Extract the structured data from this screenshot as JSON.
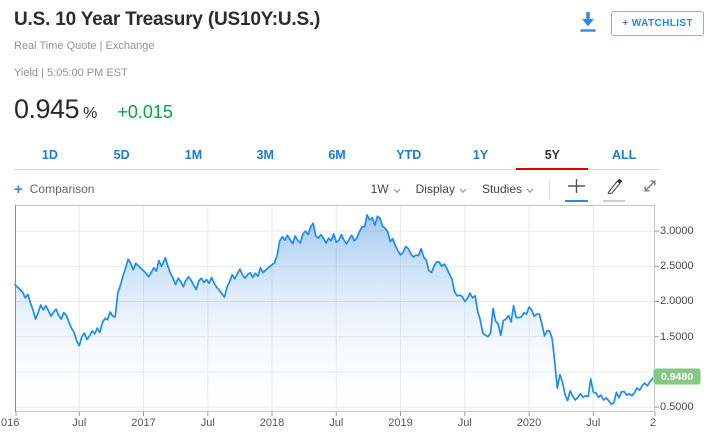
{
  "header": {
    "title": "U.S. 10 Year Treasury (US10Y:U.S.)",
    "subtitle": "Real Time Quote | Exchange",
    "quote_meta": "Yield | 5:05:00 PM EST",
    "price": "0.945",
    "price_unit": "%",
    "change": "+0.015",
    "change_color": "#0da04e",
    "watchlist_label": "+ WATCHLIST"
  },
  "icons": {
    "plus": "+",
    "download": "download-arrow-icon",
    "chevron": "chevron-down-icon",
    "crosshair": "crosshair-icon",
    "pencil": "pencil-icon",
    "expand": "expand-arrows-icon"
  },
  "tabs": {
    "items": [
      {
        "label": "1D",
        "active": false
      },
      {
        "label": "5D",
        "active": false
      },
      {
        "label": "1M",
        "active": false
      },
      {
        "label": "3M",
        "active": false
      },
      {
        "label": "6M",
        "active": false
      },
      {
        "label": "YTD",
        "active": false
      },
      {
        "label": "1Y",
        "active": false
      },
      {
        "label": "5Y",
        "active": true
      },
      {
        "label": "ALL",
        "active": false
      }
    ],
    "active_color": "#333333",
    "inactive_color": "#1b7cd4",
    "active_underline_color": "#e00000"
  },
  "toolbar": {
    "comparison_label": "Comparison",
    "interval": "1W",
    "display_label": "Display",
    "studies_label": "Studies"
  },
  "chart_data": {
    "type": "area",
    "series_name": "US10Y yield (%)",
    "x_domain": [
      2016.0,
      2020.98
    ],
    "y_domain": [
      0.43,
      3.37
    ],
    "y_gridlines": [
      3.0,
      2.5,
      2.0,
      1.5,
      1.0,
      0.5
    ],
    "y_labels": [
      {
        "v": 3.0,
        "label": "3.0000"
      },
      {
        "v": 2.5,
        "label": "2.5000"
      },
      {
        "v": 2.0,
        "label": "2.0000"
      },
      {
        "v": 1.5,
        "label": "1.5000"
      },
      {
        "v": 0.5,
        "label": "0.5000"
      }
    ],
    "x_ticks": [
      {
        "t": 2016.0,
        "label": "016"
      },
      {
        "t": 2016.5,
        "label": "Jul"
      },
      {
        "t": 2017.0,
        "label": "2017"
      },
      {
        "t": 2017.5,
        "label": "Jul"
      },
      {
        "t": 2018.0,
        "label": "2018"
      },
      {
        "t": 2018.5,
        "label": "Jul"
      },
      {
        "t": 2019.0,
        "label": "2019"
      },
      {
        "t": 2019.5,
        "label": "Jul"
      },
      {
        "t": 2020.0,
        "label": "2020"
      },
      {
        "t": 2020.5,
        "label": "Jul"
      },
      {
        "t": 2021.0,
        "label": "2"
      }
    ],
    "last_price_badge": {
      "label": "0.9480",
      "v": 0.948,
      "bg": "#85c785"
    },
    "line_color": "#1f8ceb",
    "fill_top": "rgba(84,156,226,0.55)",
    "fill_bottom": "rgba(255,255,255,0)",
    "grid_on": true,
    "legend": "none",
    "points": [
      [
        2016.0,
        2.24
      ],
      [
        2016.04,
        2.17
      ],
      [
        2016.06,
        2.13
      ],
      [
        2016.08,
        2.05
      ],
      [
        2016.1,
        2.1
      ],
      [
        2016.12,
        1.98
      ],
      [
        2016.14,
        1.88
      ],
      [
        2016.16,
        1.75
      ],
      [
        2016.18,
        1.84
      ],
      [
        2016.2,
        1.95
      ],
      [
        2016.22,
        1.88
      ],
      [
        2016.24,
        1.94
      ],
      [
        2016.26,
        1.87
      ],
      [
        2016.28,
        1.79
      ],
      [
        2016.3,
        1.85
      ],
      [
        2016.32,
        1.89
      ],
      [
        2016.34,
        1.8
      ],
      [
        2016.36,
        1.75
      ],
      [
        2016.38,
        1.84
      ],
      [
        2016.4,
        1.8
      ],
      [
        2016.42,
        1.7
      ],
      [
        2016.44,
        1.62
      ],
      [
        2016.46,
        1.56
      ],
      [
        2016.48,
        1.44
      ],
      [
        2016.5,
        1.37
      ],
      [
        2016.52,
        1.5
      ],
      [
        2016.54,
        1.55
      ],
      [
        2016.56,
        1.46
      ],
      [
        2016.58,
        1.51
      ],
      [
        2016.6,
        1.58
      ],
      [
        2016.62,
        1.54
      ],
      [
        2016.64,
        1.62
      ],
      [
        2016.66,
        1.56
      ],
      [
        2016.68,
        1.7
      ],
      [
        2016.7,
        1.76
      ],
      [
        2016.72,
        1.74
      ],
      [
        2016.74,
        1.85
      ],
      [
        2016.76,
        1.79
      ],
      [
        2016.78,
        1.78
      ],
      [
        2016.8,
        2.12
      ],
      [
        2016.82,
        2.23
      ],
      [
        2016.84,
        2.36
      ],
      [
        2016.86,
        2.47
      ],
      [
        2016.88,
        2.6
      ],
      [
        2016.9,
        2.54
      ],
      [
        2016.92,
        2.45
      ],
      [
        2016.94,
        2.54
      ],
      [
        2016.98,
        2.47
      ],
      [
        2017.02,
        2.4
      ],
      [
        2017.04,
        2.35
      ],
      [
        2017.06,
        2.41
      ],
      [
        2017.08,
        2.48
      ],
      [
        2017.1,
        2.43
      ],
      [
        2017.12,
        2.58
      ],
      [
        2017.14,
        2.5
      ],
      [
        2017.17,
        2.62
      ],
      [
        2017.19,
        2.5
      ],
      [
        2017.21,
        2.4
      ],
      [
        2017.23,
        2.33
      ],
      [
        2017.25,
        2.24
      ],
      [
        2017.27,
        2.33
      ],
      [
        2017.29,
        2.28
      ],
      [
        2017.31,
        2.21
      ],
      [
        2017.33,
        2.3
      ],
      [
        2017.35,
        2.35
      ],
      [
        2017.37,
        2.3
      ],
      [
        2017.39,
        2.23
      ],
      [
        2017.41,
        2.17
      ],
      [
        2017.43,
        2.29
      ],
      [
        2017.45,
        2.33
      ],
      [
        2017.47,
        2.27
      ],
      [
        2017.49,
        2.31
      ],
      [
        2017.51,
        2.26
      ],
      [
        2017.53,
        2.34
      ],
      [
        2017.55,
        2.26
      ],
      [
        2017.57,
        2.2
      ],
      [
        2017.59,
        2.16
      ],
      [
        2017.61,
        2.11
      ],
      [
        2017.63,
        2.06
      ],
      [
        2017.65,
        2.2
      ],
      [
        2017.67,
        2.28
      ],
      [
        2017.69,
        2.38
      ],
      [
        2017.71,
        2.32
      ],
      [
        2017.73,
        2.39
      ],
      [
        2017.75,
        2.46
      ],
      [
        2017.77,
        2.38
      ],
      [
        2017.79,
        2.33
      ],
      [
        2017.81,
        2.38
      ],
      [
        2017.83,
        2.41
      ],
      [
        2017.85,
        2.34
      ],
      [
        2017.87,
        2.4
      ],
      [
        2017.89,
        2.36
      ],
      [
        2017.91,
        2.48
      ],
      [
        2017.93,
        2.41
      ],
      [
        2017.97,
        2.48
      ],
      [
        2018.02,
        2.55
      ],
      [
        2018.04,
        2.66
      ],
      [
        2018.06,
        2.86
      ],
      [
        2018.08,
        2.92
      ],
      [
        2018.1,
        2.87
      ],
      [
        2018.12,
        2.94
      ],
      [
        2018.14,
        2.88
      ],
      [
        2018.16,
        2.82
      ],
      [
        2018.18,
        2.93
      ],
      [
        2018.2,
        2.87
      ],
      [
        2018.22,
        2.83
      ],
      [
        2018.24,
        2.96
      ],
      [
        2018.26,
        3.0
      ],
      [
        2018.28,
        2.95
      ],
      [
        2018.3,
        3.06
      ],
      [
        2018.32,
        3.11
      ],
      [
        2018.34,
        2.93
      ],
      [
        2018.36,
        2.9
      ],
      [
        2018.38,
        2.95
      ],
      [
        2018.4,
        2.9
      ],
      [
        2018.42,
        2.83
      ],
      [
        2018.44,
        2.9
      ],
      [
        2018.46,
        2.86
      ],
      [
        2018.48,
        2.96
      ],
      [
        2018.5,
        2.84
      ],
      [
        2018.52,
        2.87
      ],
      [
        2018.54,
        2.95
      ],
      [
        2018.56,
        2.87
      ],
      [
        2018.58,
        2.82
      ],
      [
        2018.6,
        2.88
      ],
      [
        2018.62,
        2.94
      ],
      [
        2018.64,
        2.86
      ],
      [
        2018.66,
        2.9
      ],
      [
        2018.68,
        2.99
      ],
      [
        2018.7,
        3.06
      ],
      [
        2018.72,
        3.06
      ],
      [
        2018.74,
        3.23
      ],
      [
        2018.76,
        3.16
      ],
      [
        2018.78,
        3.19
      ],
      [
        2018.8,
        3.08
      ],
      [
        2018.82,
        3.21
      ],
      [
        2018.84,
        3.18
      ],
      [
        2018.86,
        3.07
      ],
      [
        2018.88,
        3.04
      ],
      [
        2018.9,
        2.99
      ],
      [
        2018.92,
        2.85
      ],
      [
        2018.94,
        2.89
      ],
      [
        2018.96,
        2.79
      ],
      [
        2018.98,
        2.72
      ],
      [
        2019.0,
        2.66
      ],
      [
        2019.02,
        2.7
      ],
      [
        2019.04,
        2.78
      ],
      [
        2019.06,
        2.75
      ],
      [
        2019.08,
        2.68
      ],
      [
        2019.1,
        2.63
      ],
      [
        2019.12,
        2.66
      ],
      [
        2019.14,
        2.65
      ],
      [
        2019.16,
        2.75
      ],
      [
        2019.18,
        2.63
      ],
      [
        2019.2,
        2.59
      ],
      [
        2019.22,
        2.44
      ],
      [
        2019.24,
        2.41
      ],
      [
        2019.26,
        2.5
      ],
      [
        2019.28,
        2.56
      ],
      [
        2019.3,
        2.56
      ],
      [
        2019.32,
        2.5
      ],
      [
        2019.34,
        2.53
      ],
      [
        2019.36,
        2.47
      ],
      [
        2019.38,
        2.39
      ],
      [
        2019.4,
        2.32
      ],
      [
        2019.42,
        2.14
      ],
      [
        2019.44,
        2.08
      ],
      [
        2019.46,
        2.09
      ],
      [
        2019.48,
        2.07
      ],
      [
        2019.5,
        2.0
      ],
      [
        2019.52,
        2.04
      ],
      [
        2019.54,
        2.12
      ],
      [
        2019.56,
        2.05
      ],
      [
        2019.58,
        2.08
      ],
      [
        2019.6,
        1.86
      ],
      [
        2019.62,
        1.74
      ],
      [
        2019.64,
        1.55
      ],
      [
        2019.66,
        1.52
      ],
      [
        2019.68,
        1.5
      ],
      [
        2019.7,
        1.55
      ],
      [
        2019.72,
        1.9
      ],
      [
        2019.74,
        1.72
      ],
      [
        2019.76,
        1.68
      ],
      [
        2019.78,
        1.52
      ],
      [
        2019.8,
        1.73
      ],
      [
        2019.82,
        1.75
      ],
      [
        2019.84,
        1.8
      ],
      [
        2019.86,
        1.71
      ],
      [
        2019.88,
        1.94
      ],
      [
        2019.9,
        1.77
      ],
      [
        2019.92,
        1.77
      ],
      [
        2019.94,
        1.78
      ],
      [
        2019.96,
        1.84
      ],
      [
        2019.98,
        1.82
      ],
      [
        2020.0,
        1.92
      ],
      [
        2020.02,
        1.88
      ],
      [
        2020.04,
        1.79
      ],
      [
        2020.06,
        1.82
      ],
      [
        2020.08,
        1.82
      ],
      [
        2020.1,
        1.68
      ],
      [
        2020.12,
        1.51
      ],
      [
        2020.14,
        1.58
      ],
      [
        2020.16,
        1.58
      ],
      [
        2020.18,
        1.47
      ],
      [
        2020.2,
        1.13
      ],
      [
        2020.22,
        0.77
      ],
      [
        2020.24,
        0.96
      ],
      [
        2020.26,
        0.85
      ],
      [
        2020.28,
        0.68
      ],
      [
        2020.3,
        0.59
      ],
      [
        2020.32,
        0.73
      ],
      [
        2020.34,
        0.65
      ],
      [
        2020.36,
        0.6
      ],
      [
        2020.38,
        0.64
      ],
      [
        2020.4,
        0.69
      ],
      [
        2020.42,
        0.64
      ],
      [
        2020.44,
        0.66
      ],
      [
        2020.46,
        0.65
      ],
      [
        2020.48,
        0.9
      ],
      [
        2020.5,
        0.71
      ],
      [
        2020.52,
        0.7
      ],
      [
        2020.54,
        0.64
      ],
      [
        2020.56,
        0.67
      ],
      [
        2020.58,
        0.6
      ],
      [
        2020.6,
        0.63
      ],
      [
        2020.62,
        0.59
      ],
      [
        2020.64,
        0.54
      ],
      [
        2020.66,
        0.56
      ],
      [
        2020.68,
        0.71
      ],
      [
        2020.7,
        0.63
      ],
      [
        2020.72,
        0.72
      ],
      [
        2020.74,
        0.72
      ],
      [
        2020.76,
        0.67
      ],
      [
        2020.78,
        0.69
      ],
      [
        2020.8,
        0.66
      ],
      [
        2020.82,
        0.7
      ],
      [
        2020.84,
        0.77
      ],
      [
        2020.86,
        0.74
      ],
      [
        2020.88,
        0.8
      ],
      [
        2020.9,
        0.84
      ],
      [
        2020.92,
        0.8
      ],
      [
        2020.94,
        0.86
      ],
      [
        2020.96,
        0.9
      ],
      [
        2020.98,
        0.948
      ]
    ]
  }
}
